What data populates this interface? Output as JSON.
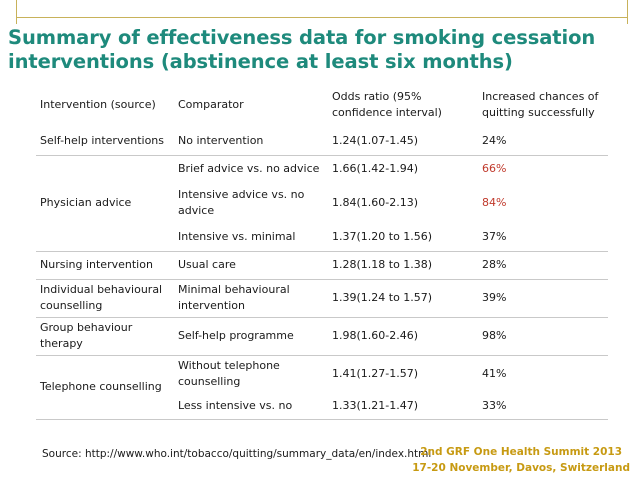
{
  "title": {
    "line1": "Summary of effectiveness data for smoking cessation",
    "line2": "interventions (abstinence at least six months)"
  },
  "table": {
    "headers": [
      "Intervention (source)",
      "Comparator",
      "Odds ratio (95% confidence interval)",
      "Increased chances of quitting successfully"
    ],
    "groups": [
      {
        "intervention": "Self-help interventions",
        "rows": [
          {
            "comparator": "No intervention",
            "odds": "1.24(1.07-1.45)",
            "chance": "24%",
            "highlight": false
          }
        ]
      },
      {
        "intervention": "Physician advice",
        "rows": [
          {
            "comparator": "Brief advice vs. no advice",
            "odds": "1.66(1.42-1.94)",
            "chance": "66%",
            "highlight": true
          },
          {
            "comparator": "Intensive advice vs. no advice",
            "odds": "1.84(1.60-2.13)",
            "chance": "84%",
            "highlight": true
          },
          {
            "comparator": "Intensive vs. minimal",
            "odds": "1.37(1.20 to 1.56)",
            "chance": "37%",
            "highlight": false
          }
        ]
      },
      {
        "intervention": "Nursing intervention",
        "rows": [
          {
            "comparator": "Usual care",
            "odds": "1.28(1.18 to 1.38)",
            "chance": "28%",
            "highlight": false
          }
        ]
      },
      {
        "intervention": "Individual behavioural counselling",
        "rows": [
          {
            "comparator": "Minimal behavioural intervention",
            "odds": "1.39(1.24 to 1.57)",
            "chance": "39%",
            "highlight": false
          }
        ]
      },
      {
        "intervention": "Group behaviour therapy",
        "rows": [
          {
            "comparator": "Self-help programme",
            "odds": "1.98(1.60-2.46)",
            "chance": "98%",
            "highlight": false
          }
        ]
      },
      {
        "intervention": "Telephone counselling",
        "rows": [
          {
            "comparator": "Without telephone counselling",
            "odds": "1.41(1.27-1.57)",
            "chance": "41%",
            "highlight": false
          },
          {
            "comparator": "Less intensive vs. no",
            "odds": "1.33(1.21-1.47)",
            "chance": "33%",
            "highlight": false
          }
        ]
      }
    ]
  },
  "footer": {
    "source": "Source: http://www.who.int/tobacco/quitting/summary_data/en/index.html",
    "summit_line1": "2nd GRF One Health Summit 2013",
    "summit_line2": "17-20 November, Davos, Switzerland"
  },
  "colors": {
    "title": "#1e8a7c",
    "highlight": "#c0392b",
    "summit": "#c79a12",
    "decor_line": "#c8b25a"
  }
}
